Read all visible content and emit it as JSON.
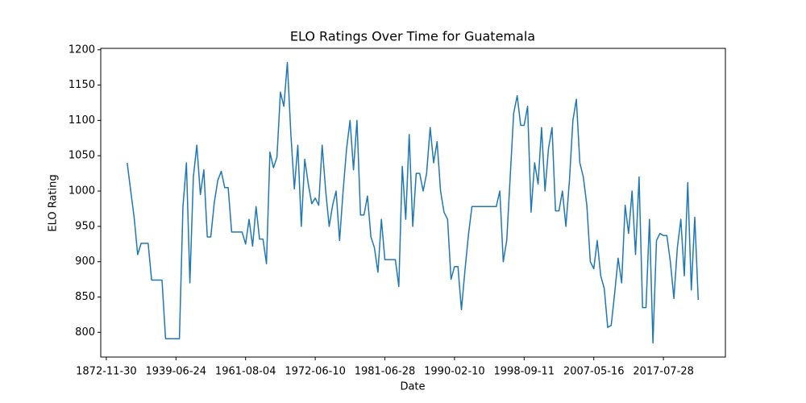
{
  "chart_data": {
    "type": "line",
    "title": "ELO Ratings Over Time for Guatemala",
    "xlabel": "Date",
    "ylabel": "ELO Rating",
    "series": [
      {
        "color": "#1f77b4",
        "values": [
          1040,
          1000,
          962,
          910,
          926,
          926,
          926,
          874,
          874,
          874,
          874,
          791,
          791,
          791,
          791,
          791,
          978,
          1040,
          870,
          1020,
          1065,
          995,
          1030,
          935,
          935,
          983,
          1015,
          1028,
          1005,
          1005,
          942,
          942,
          942,
          942,
          925,
          960,
          922,
          978,
          932,
          932,
          897,
          1055,
          1033,
          1048,
          1140,
          1120,
          1182,
          1080,
          1003,
          1065,
          950,
          1045,
          1010,
          982,
          990,
          980,
          1065,
          1000,
          950,
          980,
          1000,
          930,
          1000,
          1060,
          1100,
          1030,
          1100,
          966,
          966,
          993,
          935,
          920,
          885,
          960,
          903,
          903,
          903,
          903,
          865,
          1035,
          960,
          1080,
          950,
          1025,
          1025,
          1000,
          1025,
          1090,
          1040,
          1070,
          1000,
          970,
          960,
          875,
          893,
          893,
          832,
          888,
          938,
          978,
          978,
          978,
          978,
          978,
          978,
          978,
          978,
          1000,
          900,
          930,
          1020,
          1110,
          1135,
          1093,
          1093,
          1120,
          970,
          1040,
          1010,
          1090,
          1000,
          1060,
          1090,
          972,
          972,
          1000,
          950,
          1015,
          1100,
          1130,
          1040,
          1020,
          980,
          900,
          890,
          930,
          880,
          862,
          807,
          810,
          855,
          905,
          870,
          980,
          940,
          1000,
          910,
          1020,
          835,
          835,
          960,
          785,
          930,
          940,
          937,
          937,
          900,
          848,
          920,
          960,
          880,
          1012,
          860,
          963,
          846
        ]
      }
    ],
    "xlim": [
      -7.6,
      171.8
    ],
    "xticks": [
      {
        "value": -6,
        "label": "1872-11-30"
      },
      {
        "value": 14,
        "label": "1939-06-24"
      },
      {
        "value": 34,
        "label": "1961-08-04"
      },
      {
        "value": 54,
        "label": "1972-06-10"
      },
      {
        "value": 74,
        "label": "1981-06-28"
      },
      {
        "value": 94,
        "label": "1990-02-10"
      },
      {
        "value": 114,
        "label": "1998-09-11"
      },
      {
        "value": 134,
        "label": "2007-05-16"
      },
      {
        "value": 154,
        "label": "2017-07-28"
      }
    ],
    "ylim": [
      765,
      1202
    ],
    "yticks": [
      800,
      850,
      900,
      950,
      1000,
      1050,
      1100,
      1150,
      1200
    ]
  }
}
